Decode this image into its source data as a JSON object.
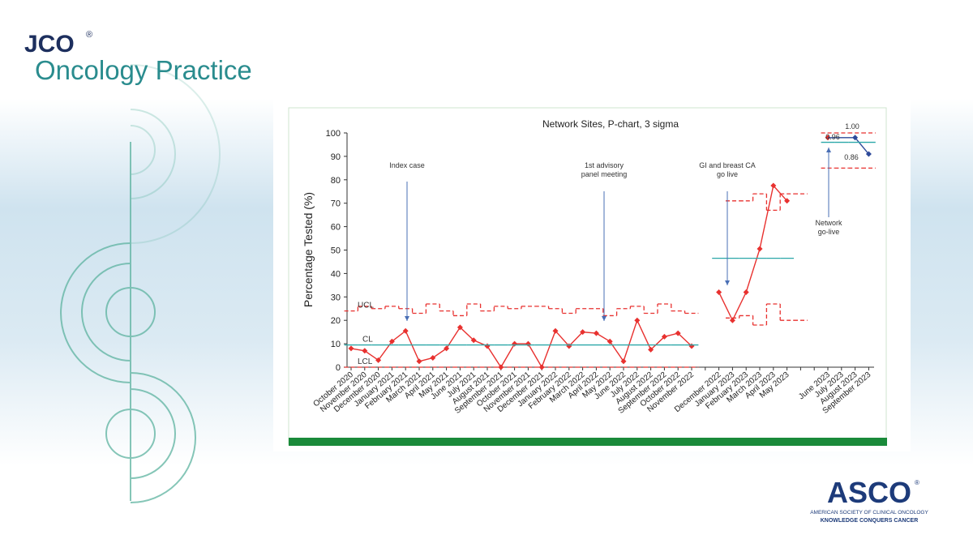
{
  "header": {
    "brand": "JCO",
    "reg": "®",
    "journal": "Oncology Practice"
  },
  "footer": {
    "name": "ASCO",
    "reg": "®",
    "line1": "AMERICAN SOCIETY OF CLINICAL ONCOLOGY",
    "line2": "KNOWLEDGE CONQUERS CANCER"
  },
  "chart_data": {
    "type": "line",
    "title": "Network Sites, P-chart, 3 sigma",
    "y_label": "Percentage Tested (%)",
    "categories": [
      "October 2020",
      "November 2020",
      "December 2020",
      "January 2021",
      "February 2021",
      "March 2021",
      "April 2021",
      "May 2021",
      "June 2021",
      "July 2021",
      "August 2021",
      "September 2021",
      "October 2021",
      "November 2021",
      "December 2021",
      "January 2022",
      "February 2022",
      "March 2022",
      "April 2022",
      "May 2022",
      "June 2022",
      "July 2022",
      "August 2022",
      "September 2022",
      "October 2022",
      "November 2022",
      null,
      "December 2022",
      "January 2023",
      "February 2023",
      "March 2023",
      "April 2023",
      "May 2023",
      null,
      null,
      "June 2023",
      "July 2023",
      "August 2023",
      "September 2023"
    ],
    "ylim": [
      0,
      100
    ],
    "yticks": [
      0,
      10,
      20,
      30,
      40,
      50,
      60,
      70,
      80,
      90,
      100
    ],
    "series": [
      {
        "color": "#e8312f",
        "values": [
          8,
          7,
          3,
          11,
          15.5,
          2.5,
          4,
          8,
          17,
          11.5,
          9,
          0,
          10,
          10,
          0,
          15.5,
          9,
          15,
          14.5,
          11,
          2.5,
          20,
          7.5,
          13,
          14.5,
          9,
          null,
          32,
          20,
          32,
          50.5,
          77.5,
          71,
          null,
          null,
          98,
          null,
          null,
          null
        ]
      },
      {
        "color": "#2e4a9a",
        "values": [
          null,
          null,
          null,
          null,
          null,
          null,
          null,
          null,
          null,
          null,
          null,
          null,
          null,
          null,
          null,
          null,
          null,
          null,
          null,
          null,
          null,
          null,
          null,
          null,
          null,
          null,
          null,
          null,
          null,
          null,
          null,
          null,
          null,
          null,
          null,
          null,
          null,
          98,
          91
        ]
      },
      {
        "name": "UCL",
        "color": "#e8312f",
        "values": [
          24,
          26,
          25,
          26,
          25,
          23,
          27,
          24,
          22,
          27,
          24,
          26,
          25,
          26,
          26,
          25,
          23,
          25,
          25,
          22,
          25,
          26,
          23,
          27,
          24,
          23,
          null,
          null,
          71,
          71,
          74,
          67,
          74,
          74,
          null,
          100,
          100,
          100,
          100
        ]
      },
      {
        "name": "CL",
        "color": "#2aa7a8",
        "values": [
          9.5,
          9.5,
          9.5,
          9.5,
          9.5,
          9.5,
          9.5,
          9.5,
          9.5,
          9.5,
          9.5,
          9.5,
          9.5,
          9.5,
          9.5,
          9.5,
          9.5,
          9.5,
          9.5,
          9.5,
          9.5,
          9.5,
          9.5,
          9.5,
          9.5,
          9.5,
          null,
          46.5,
          46.5,
          46.5,
          46.5,
          46.5,
          46.5,
          null,
          null,
          96,
          96,
          96,
          96
        ]
      },
      {
        "name": "LCL",
        "color": "#e8312f",
        "values": [
          0,
          0,
          0,
          0,
          0,
          0,
          0,
          0,
          0,
          0,
          0,
          0,
          0,
          0,
          0,
          0,
          0,
          0,
          0,
          0,
          0,
          0,
          0,
          0,
          0,
          0,
          null,
          null,
          21,
          22,
          18,
          27,
          20,
          20,
          null,
          85,
          85,
          85,
          85
        ]
      }
    ],
    "annotations": [
      "Index case",
      "1st advisory\npanel meeting",
      "GI and breast CA\ngo live",
      "Network\ngo-live"
    ],
    "point_notes": [
      "0.96",
      "1.00",
      "0.86"
    ]
  }
}
